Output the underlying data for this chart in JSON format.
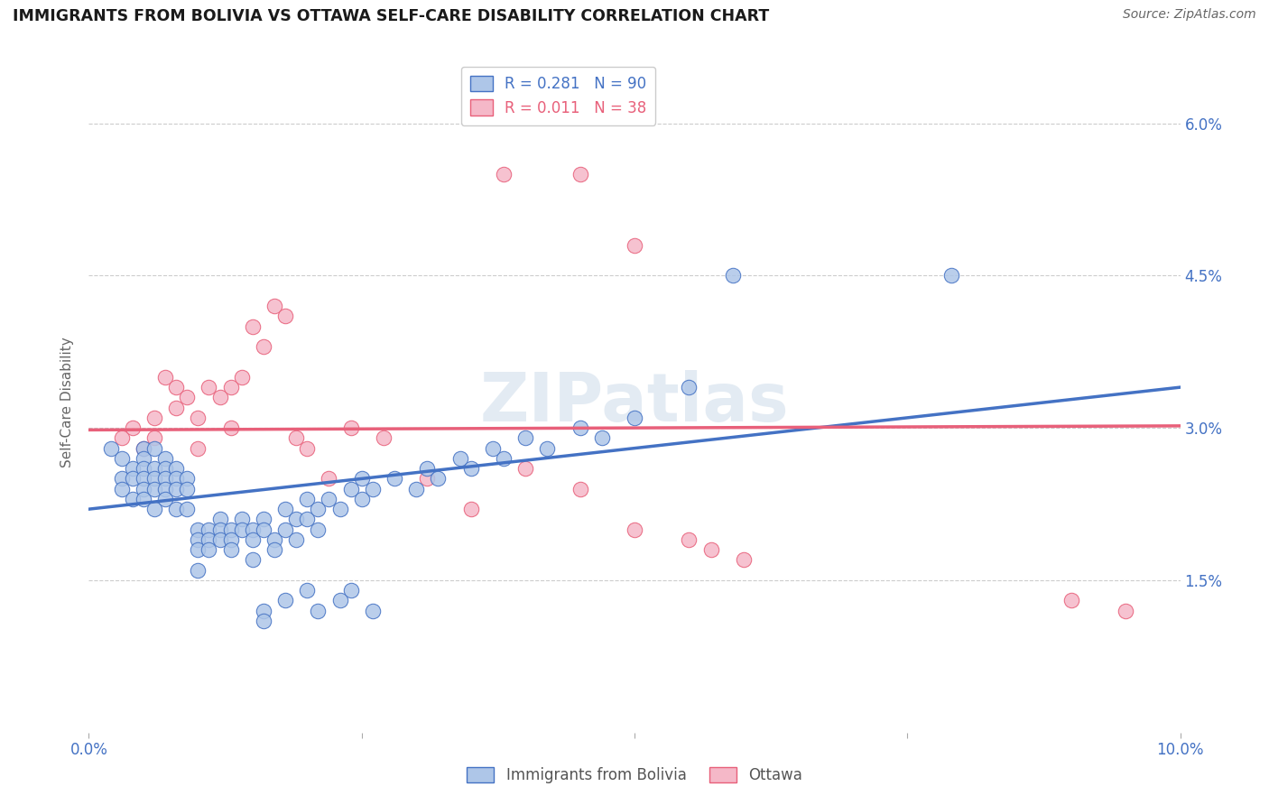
{
  "title": "IMMIGRANTS FROM BOLIVIA VS OTTAWA SELF-CARE DISABILITY CORRELATION CHART",
  "source": "Source: ZipAtlas.com",
  "ylabel": "Self-Care Disability",
  "xlim": [
    0.0,
    0.1
  ],
  "ylim": [
    0.0,
    0.065
  ],
  "ytick_vals": [
    0.0,
    0.015,
    0.03,
    0.045,
    0.06
  ],
  "ytick_labels": [
    "",
    "1.5%",
    "3.0%",
    "4.5%",
    "6.0%"
  ],
  "legend_r_blue": "R = 0.281",
  "legend_n_blue": "N = 90",
  "legend_r_pink": "R = 0.011",
  "legend_n_pink": "N = 38",
  "blue_color": "#aec6e8",
  "pink_color": "#f5b8c8",
  "line_blue": "#4472c4",
  "line_pink": "#e8607a",
  "legend_text_blue": "#4472c4",
  "legend_text_pink": "#e8607a",
  "watermark": "ZIPatlas",
  "blue_scatter_x": [
    0.002,
    0.003,
    0.003,
    0.003,
    0.004,
    0.004,
    0.004,
    0.005,
    0.005,
    0.005,
    0.005,
    0.005,
    0.005,
    0.006,
    0.006,
    0.006,
    0.006,
    0.006,
    0.007,
    0.007,
    0.007,
    0.007,
    0.007,
    0.008,
    0.008,
    0.008,
    0.008,
    0.009,
    0.009,
    0.009,
    0.01,
    0.01,
    0.01,
    0.01,
    0.011,
    0.011,
    0.011,
    0.012,
    0.012,
    0.012,
    0.013,
    0.013,
    0.013,
    0.014,
    0.014,
    0.015,
    0.015,
    0.015,
    0.016,
    0.016,
    0.017,
    0.017,
    0.018,
    0.018,
    0.019,
    0.019,
    0.02,
    0.02,
    0.021,
    0.021,
    0.022,
    0.023,
    0.024,
    0.025,
    0.025,
    0.026,
    0.028,
    0.03,
    0.031,
    0.032,
    0.034,
    0.035,
    0.037,
    0.038,
    0.04,
    0.042,
    0.045,
    0.047,
    0.05,
    0.055,
    0.016,
    0.016,
    0.018,
    0.02,
    0.021,
    0.023,
    0.024,
    0.026,
    0.059,
    0.079
  ],
  "blue_scatter_y": [
    0.028,
    0.027,
    0.025,
    0.024,
    0.026,
    0.025,
    0.023,
    0.028,
    0.027,
    0.026,
    0.025,
    0.024,
    0.023,
    0.028,
    0.026,
    0.025,
    0.024,
    0.022,
    0.027,
    0.026,
    0.025,
    0.024,
    0.023,
    0.026,
    0.025,
    0.024,
    0.022,
    0.025,
    0.024,
    0.022,
    0.02,
    0.019,
    0.018,
    0.016,
    0.02,
    0.019,
    0.018,
    0.021,
    0.02,
    0.019,
    0.02,
    0.019,
    0.018,
    0.021,
    0.02,
    0.02,
    0.019,
    0.017,
    0.021,
    0.02,
    0.019,
    0.018,
    0.022,
    0.02,
    0.021,
    0.019,
    0.023,
    0.021,
    0.022,
    0.02,
    0.023,
    0.022,
    0.024,
    0.023,
    0.025,
    0.024,
    0.025,
    0.024,
    0.026,
    0.025,
    0.027,
    0.026,
    0.028,
    0.027,
    0.029,
    0.028,
    0.03,
    0.029,
    0.031,
    0.034,
    0.012,
    0.011,
    0.013,
    0.014,
    0.012,
    0.013,
    0.014,
    0.012,
    0.045,
    0.045
  ],
  "pink_scatter_x": [
    0.003,
    0.004,
    0.005,
    0.006,
    0.006,
    0.007,
    0.008,
    0.008,
    0.009,
    0.01,
    0.01,
    0.011,
    0.012,
    0.013,
    0.013,
    0.014,
    0.015,
    0.016,
    0.017,
    0.018,
    0.019,
    0.02,
    0.022,
    0.024,
    0.027,
    0.031,
    0.035,
    0.04,
    0.045,
    0.05,
    0.038,
    0.045,
    0.05,
    0.055,
    0.057,
    0.06,
    0.09,
    0.095
  ],
  "pink_scatter_y": [
    0.029,
    0.03,
    0.028,
    0.031,
    0.029,
    0.035,
    0.034,
    0.032,
    0.033,
    0.031,
    0.028,
    0.034,
    0.033,
    0.034,
    0.03,
    0.035,
    0.04,
    0.038,
    0.042,
    0.041,
    0.029,
    0.028,
    0.025,
    0.03,
    0.029,
    0.025,
    0.022,
    0.026,
    0.024,
    0.02,
    0.055,
    0.055,
    0.048,
    0.019,
    0.018,
    0.017,
    0.013,
    0.012
  ],
  "blue_line_y_start": 0.022,
  "blue_line_y_end": 0.034,
  "pink_line_y_start": 0.0298,
  "pink_line_y_end": 0.0302
}
